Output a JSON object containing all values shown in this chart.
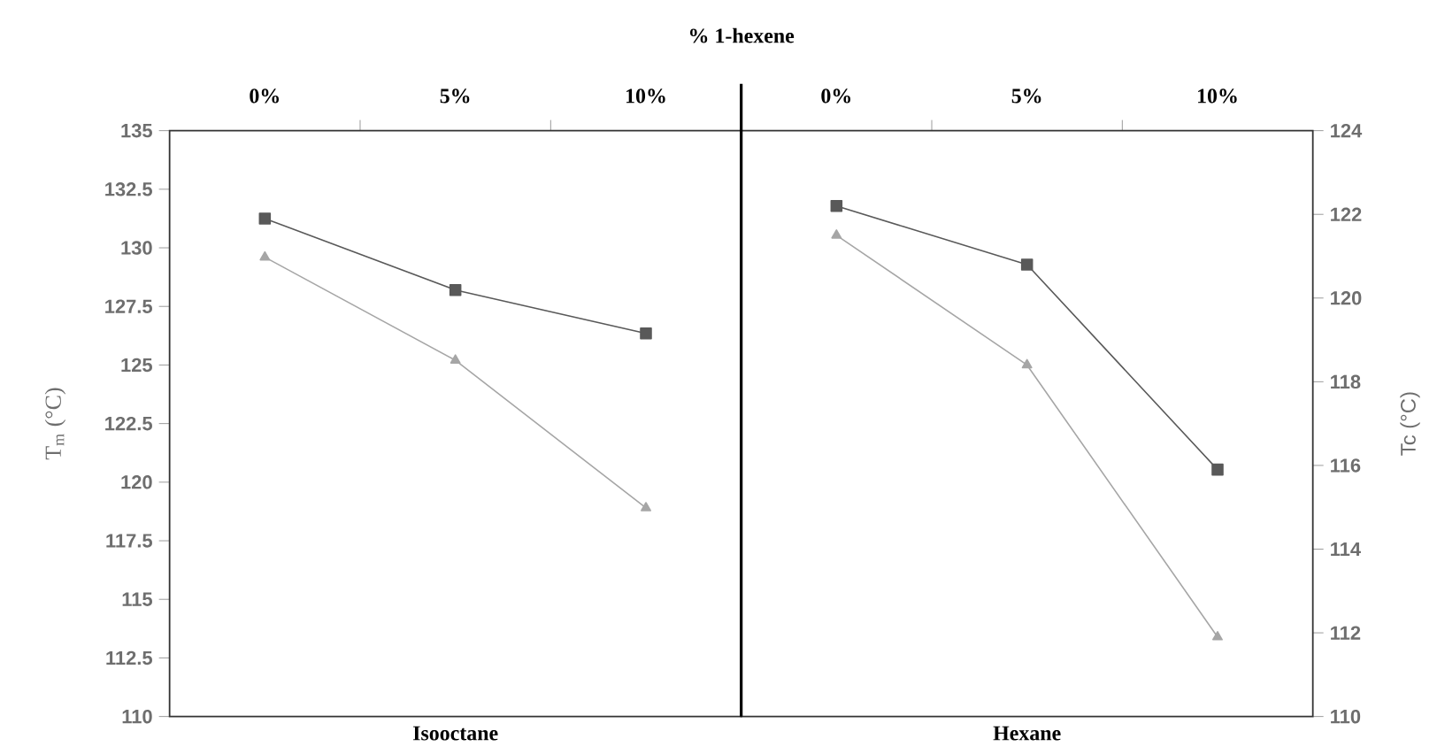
{
  "chart_data": [
    {
      "type": "line",
      "title": "% 1-hexene",
      "categories": [
        "0%",
        "5%",
        "10%"
      ],
      "xlabel": "Isooctane",
      "ylabel": "T$_{m}$ (°C)",
      "ylim": [
        110,
        135
      ],
      "yticks": [
        110,
        112.5,
        115,
        117.5,
        120,
        122.5,
        125,
        127.5,
        130,
        132.5,
        135
      ],
      "series": [
        {
          "color": "#595959",
          "marker": "square",
          "values": [
            131.25,
            128.2,
            126.35
          ]
        },
        {
          "color": "#a6a6a6",
          "marker": "triangle",
          "values": [
            129.6,
            125.2,
            118.9
          ]
        }
      ]
    },
    {
      "type": "line",
      "categories": [
        "0%",
        "5%",
        "10%"
      ],
      "xlabel": "Hexane",
      "y2label": "Tc (°C)",
      "y2lim": [
        110,
        124
      ],
      "y2ticks": [
        110,
        112,
        114,
        116,
        118,
        120,
        122,
        124
      ],
      "series": [
        {
          "color": "#595959",
          "marker": "square",
          "axis": "y2",
          "values": [
            122.2,
            120.8,
            115.9
          ]
        },
        {
          "color": "#a6a6a6",
          "marker": "triangle",
          "axis": "y2",
          "values": [
            121.5,
            118.4,
            111.9
          ]
        }
      ]
    }
  ]
}
